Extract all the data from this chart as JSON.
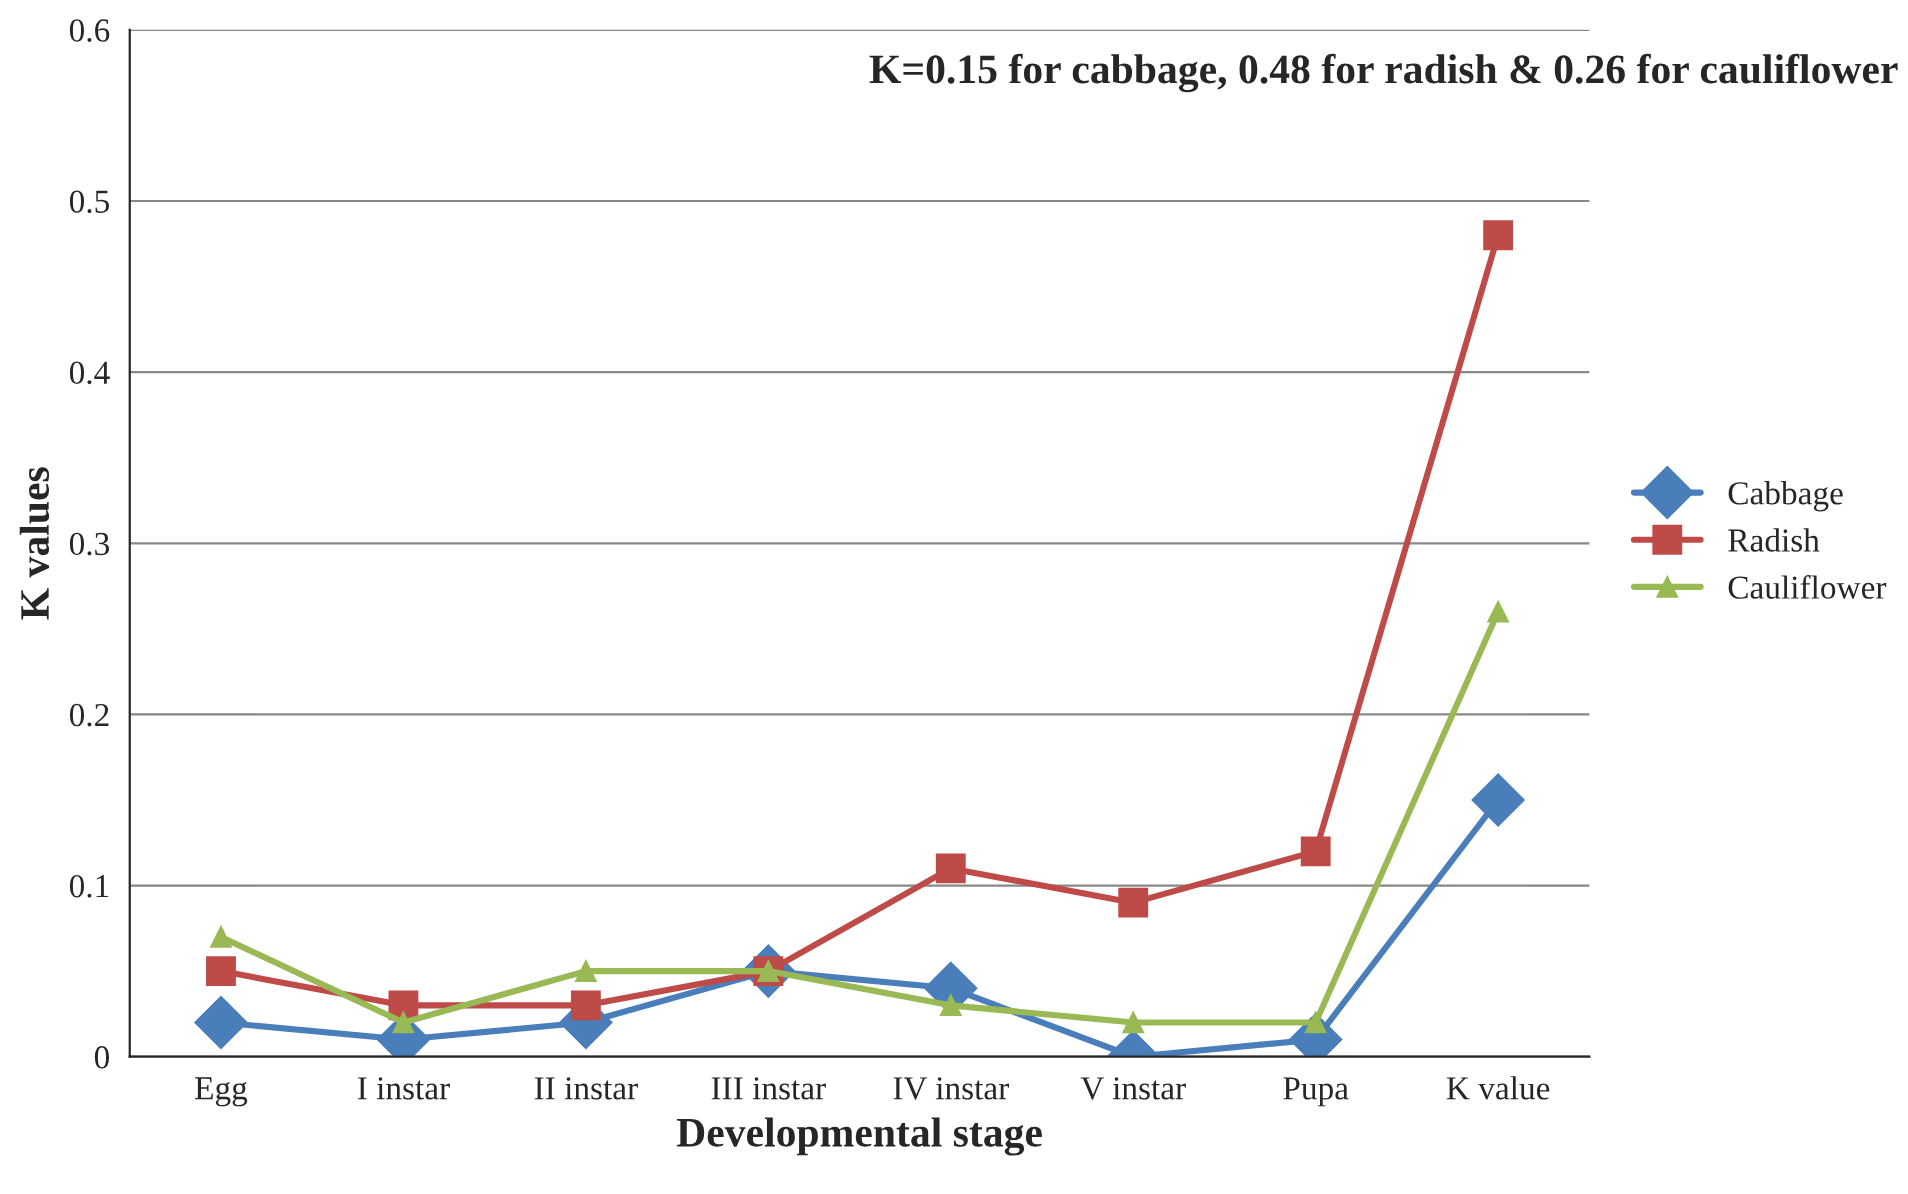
{
  "chart_data": {
    "type": "line",
    "xlabel": "Developmental stage",
    "ylabel": "K values",
    "categories": [
      "Egg",
      "I instar",
      "II instar",
      "III instar",
      "IV instar",
      "V instar",
      "Pupa",
      "K value"
    ],
    "series": [
      {
        "name": "Cabbage",
        "color": "#4a7ebb",
        "marker": "diamond",
        "values": [
          0.02,
          0.01,
          0.02,
          0.05,
          0.04,
          0.0,
          0.01,
          0.15
        ]
      },
      {
        "name": "Radish",
        "color": "#be4b48",
        "marker": "square",
        "values": [
          0.05,
          0.03,
          0.03,
          0.05,
          0.11,
          0.09,
          0.12,
          0.48
        ]
      },
      {
        "name": "Cauliflower",
        "color": "#98b954",
        "marker": "triangle",
        "values": [
          0.07,
          0.02,
          0.05,
          0.05,
          0.03,
          0.02,
          0.02,
          0.26
        ]
      }
    ],
    "ylim": [
      0,
      0.6
    ],
    "yticks": [
      0,
      0.1,
      0.2,
      0.3,
      0.4,
      0.5,
      0.6
    ],
    "grid": "y",
    "legend": "right",
    "line_style": "solid",
    "annotations": [
      "K=0.15 for cabbage, 0.48 for radish & 0.26 for cauliflower"
    ]
  }
}
